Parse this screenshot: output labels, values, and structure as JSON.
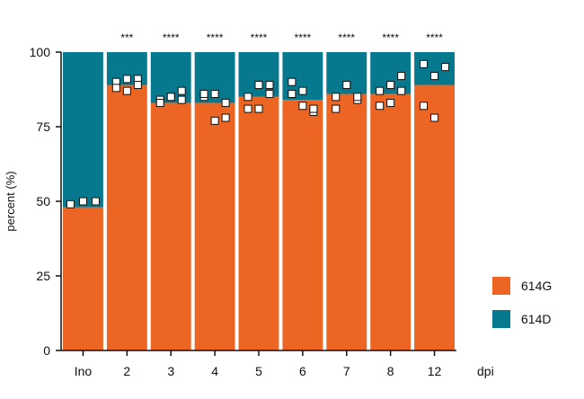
{
  "chart_data": {
    "type": "bar",
    "stacked": true,
    "percent_stacked": true,
    "ylabel": "percent (%)",
    "xlabel": "dpi",
    "ylim": [
      0,
      100
    ],
    "yticks": [
      0,
      25,
      50,
      75,
      100
    ],
    "categories": [
      "Ino",
      "2",
      "3",
      "4",
      "5",
      "6",
      "7",
      "8",
      "12"
    ],
    "significance": [
      "",
      "***",
      "****",
      "****",
      "****",
      "****",
      "****",
      "****",
      "****"
    ],
    "series": [
      {
        "name": "614G",
        "color": "#ec6523",
        "values": [
          48,
          89,
          83,
          83,
          85,
          84,
          86,
          86,
          89
        ]
      },
      {
        "name": "614D",
        "color": "#07798f",
        "values": [
          52,
          11,
          17,
          17,
          15,
          16,
          14,
          14,
          11
        ]
      }
    ],
    "points": [
      [
        49,
        50,
        50
      ],
      [
        90,
        91,
        91,
        88,
        87,
        89
      ],
      [
        84,
        85,
        87,
        83,
        85,
        84
      ],
      [
        85,
        77,
        78,
        86,
        86,
        83
      ],
      [
        85,
        89,
        89,
        81,
        81,
        86
      ],
      [
        86,
        82,
        80,
        90,
        87,
        81
      ],
      [
        85,
        89,
        84,
        81,
        89,
        85
      ],
      [
        87,
        89,
        92,
        82,
        83,
        87
      ],
      [
        96,
        92,
        95,
        82,
        78
      ]
    ],
    "legend_position": "right",
    "grid": false
  }
}
